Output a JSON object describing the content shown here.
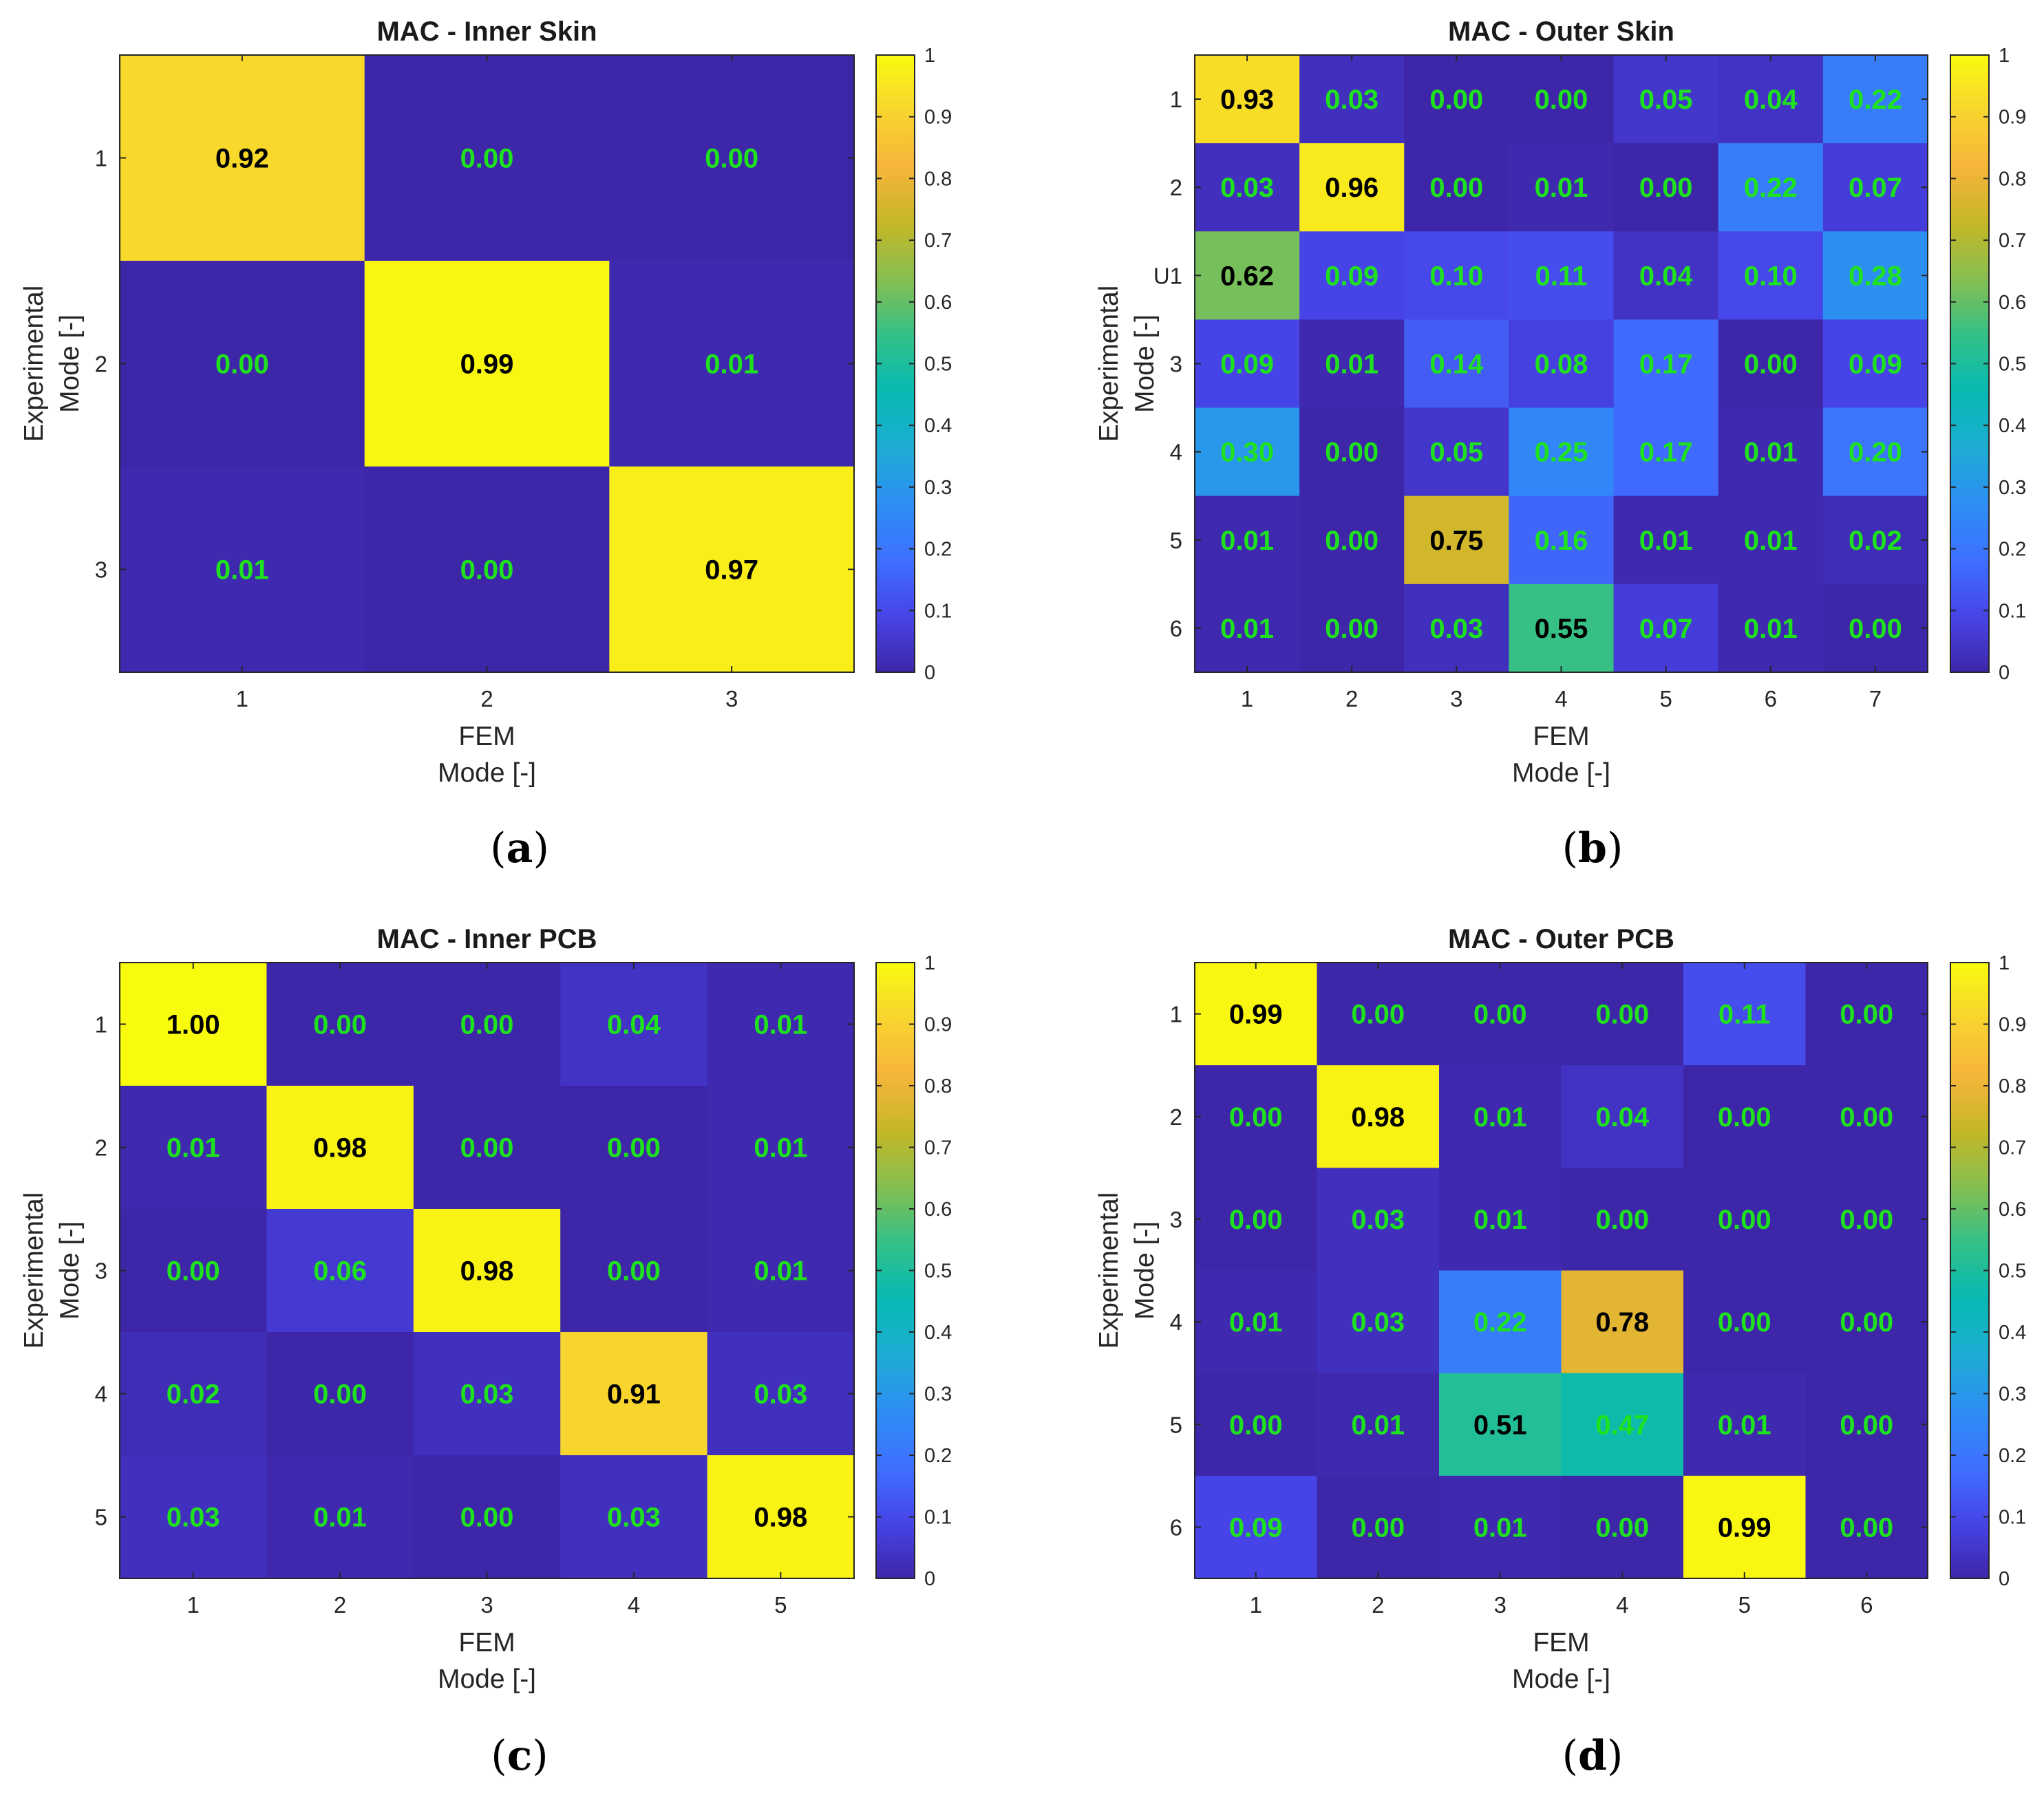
{
  "palette": {
    "low": "#3e26a8",
    "high": "#f9fb0e",
    "text_light": "#1ee21e",
    "text_dark": "#000000",
    "stops": [
      "#3e26a8",
      "#4744e8",
      "#3e70ff",
      "#2d8ef4",
      "#1eacd3",
      "#06bab2",
      "#33c088",
      "#86bf50",
      "#c5b727",
      "#f7b53b",
      "#f8d42f",
      "#f9fb0e"
    ]
  },
  "chart_data": [
    {
      "type": "heatmap",
      "panel_label": "a",
      "title": "MAC - Inner Skin",
      "xlabel": [
        "FEM",
        "Mode [-]"
      ],
      "ylabel": [
        "Experimental",
        "Mode [-]"
      ],
      "x_categories": [
        "1",
        "2",
        "3"
      ],
      "y_categories": [
        "1",
        "2",
        "3"
      ],
      "clim": [
        0,
        1
      ],
      "colorbar_ticks": [
        "0",
        "0.1",
        "0.2",
        "0.3",
        "0.4",
        "0.5",
        "0.6",
        "0.7",
        "0.8",
        "0.9",
        "1"
      ],
      "values": [
        [
          0.92,
          0.0,
          0.0
        ],
        [
          0.0,
          0.99,
          0.01
        ],
        [
          0.01,
          0.0,
          0.97
        ]
      ],
      "labels": [
        [
          "0.92",
          "0.00",
          "0.00"
        ],
        [
          "0.00",
          "0.99",
          "0.01"
        ],
        [
          "0.01",
          "0.00",
          "0.97"
        ]
      ]
    },
    {
      "type": "heatmap",
      "panel_label": "b",
      "title": "MAC - Outer Skin",
      "xlabel": [
        "FEM",
        "Mode [-]"
      ],
      "ylabel": [
        "Experimental",
        "Mode [-]"
      ],
      "x_categories": [
        "1",
        "2",
        "3",
        "4",
        "5",
        "6",
        "7"
      ],
      "y_categories": [
        "1",
        "2",
        "U1",
        "3",
        "4",
        "5",
        "6"
      ],
      "clim": [
        0,
        1
      ],
      "colorbar_ticks": [
        "0",
        "0.1",
        "0.2",
        "0.3",
        "0.4",
        "0.5",
        "0.6",
        "0.7",
        "0.8",
        "0.9",
        "1"
      ],
      "values": [
        [
          0.93,
          0.03,
          0.0,
          0.0,
          0.05,
          0.04,
          0.22
        ],
        [
          0.03,
          0.96,
          0.0,
          0.01,
          0.0,
          0.22,
          0.07
        ],
        [
          0.62,
          0.09,
          0.1,
          0.11,
          0.04,
          0.1,
          0.28
        ],
        [
          0.09,
          0.01,
          0.14,
          0.08,
          0.17,
          0.0,
          0.09
        ],
        [
          0.3,
          0.0,
          0.05,
          0.25,
          0.17,
          0.01,
          0.2
        ],
        [
          0.01,
          0.0,
          0.75,
          0.16,
          0.01,
          0.01,
          0.02
        ],
        [
          0.01,
          0.0,
          0.03,
          0.55,
          0.07,
          0.01,
          0.0
        ]
      ],
      "labels": [
        [
          "0.93",
          "0.03",
          "0.00",
          "0.00",
          "0.05",
          "0.04",
          "0.22"
        ],
        [
          "0.03",
          "0.96",
          "0.00",
          "0.01",
          "0.00",
          "0.22",
          "0.07"
        ],
        [
          "0.62",
          "0.09",
          "0.10",
          "0.11",
          "0.04",
          "0.10",
          "0.28"
        ],
        [
          "0.09",
          "0.01",
          "0.14",
          "0.08",
          "0.17",
          "0.00",
          "0.09"
        ],
        [
          "0.30",
          "0.00",
          "0.05",
          "0.25",
          "0.17",
          "0.01",
          "0.20"
        ],
        [
          "0.01",
          "0.00",
          "0.75",
          "0.16",
          "0.01",
          "0.01",
          "0.02"
        ],
        [
          "0.01",
          "0.00",
          "0.03",
          "0.55",
          "0.07",
          "0.01",
          "0.00"
        ]
      ]
    },
    {
      "type": "heatmap",
      "panel_label": "c",
      "title": "MAC - Inner PCB",
      "xlabel": [
        "FEM",
        "Mode [-]"
      ],
      "ylabel": [
        "Experimental",
        "Mode [-]"
      ],
      "x_categories": [
        "1",
        "2",
        "3",
        "4",
        "5"
      ],
      "y_categories": [
        "1",
        "2",
        "3",
        "4",
        "5"
      ],
      "clim": [
        0,
        1
      ],
      "colorbar_ticks": [
        "0",
        "0.1",
        "0.2",
        "0.3",
        "0.4",
        "0.5",
        "0.6",
        "0.7",
        "0.8",
        "0.9",
        "1"
      ],
      "values": [
        [
          1.0,
          0.0,
          0.0,
          0.04,
          0.01
        ],
        [
          0.01,
          0.98,
          0.0,
          0.0,
          0.01
        ],
        [
          0.0,
          0.06,
          0.98,
          0.0,
          0.01
        ],
        [
          0.02,
          0.0,
          0.03,
          0.91,
          0.03
        ],
        [
          0.03,
          0.01,
          0.0,
          0.03,
          0.98
        ]
      ],
      "labels": [
        [
          "1.00",
          "0.00",
          "0.00",
          "0.04",
          "0.01"
        ],
        [
          "0.01",
          "0.98",
          "0.00",
          "0.00",
          "0.01"
        ],
        [
          "0.00",
          "0.06",
          "0.98",
          "0.00",
          "0.01"
        ],
        [
          "0.02",
          "0.00",
          "0.03",
          "0.91",
          "0.03"
        ],
        [
          "0.03",
          "0.01",
          "0.00",
          "0.03",
          "0.98"
        ]
      ]
    },
    {
      "type": "heatmap",
      "panel_label": "d",
      "title": "MAC - Outer PCB",
      "xlabel": [
        "FEM",
        "Mode [-]"
      ],
      "ylabel": [
        "Experimental",
        "Mode [-]"
      ],
      "x_categories": [
        "1",
        "2",
        "3",
        "4",
        "5",
        "6"
      ],
      "y_categories": [
        "1",
        "2",
        "3",
        "4",
        "5",
        "6"
      ],
      "clim": [
        0,
        1
      ],
      "colorbar_ticks": [
        "0",
        "0.1",
        "0.2",
        "0.3",
        "0.4",
        "0.5",
        "0.6",
        "0.7",
        "0.8",
        "0.9",
        "1"
      ],
      "values": [
        [
          0.99,
          0.0,
          0.0,
          0.0,
          0.11,
          0.0
        ],
        [
          0.0,
          0.98,
          0.01,
          0.04,
          0.0,
          0.0
        ],
        [
          0.0,
          0.03,
          0.01,
          0.0,
          0.0,
          0.0
        ],
        [
          0.01,
          0.03,
          0.22,
          0.78,
          0.0,
          0.0
        ],
        [
          0.0,
          0.01,
          0.51,
          0.47,
          0.01,
          0.0
        ],
        [
          0.09,
          0.0,
          0.01,
          0.0,
          0.99,
          0.0
        ]
      ],
      "labels": [
        [
          "0.99",
          "0.00",
          "0.00",
          "0.00",
          "0.11",
          "0.00"
        ],
        [
          "0.00",
          "0.98",
          "0.01",
          "0.04",
          "0.00",
          "0.00"
        ],
        [
          "0.00",
          "0.03",
          "0.01",
          "0.00",
          "0.00",
          "0.00"
        ],
        [
          "0.01",
          "0.03",
          "0.22",
          "0.78",
          "0.00",
          "0.00"
        ],
        [
          "0.00",
          "0.01",
          "0.51",
          "0.47",
          "0.01",
          "0.00"
        ],
        [
          "0.09",
          "0.00",
          "0.01",
          "0.00",
          "0.99",
          "0.00"
        ]
      ]
    }
  ]
}
